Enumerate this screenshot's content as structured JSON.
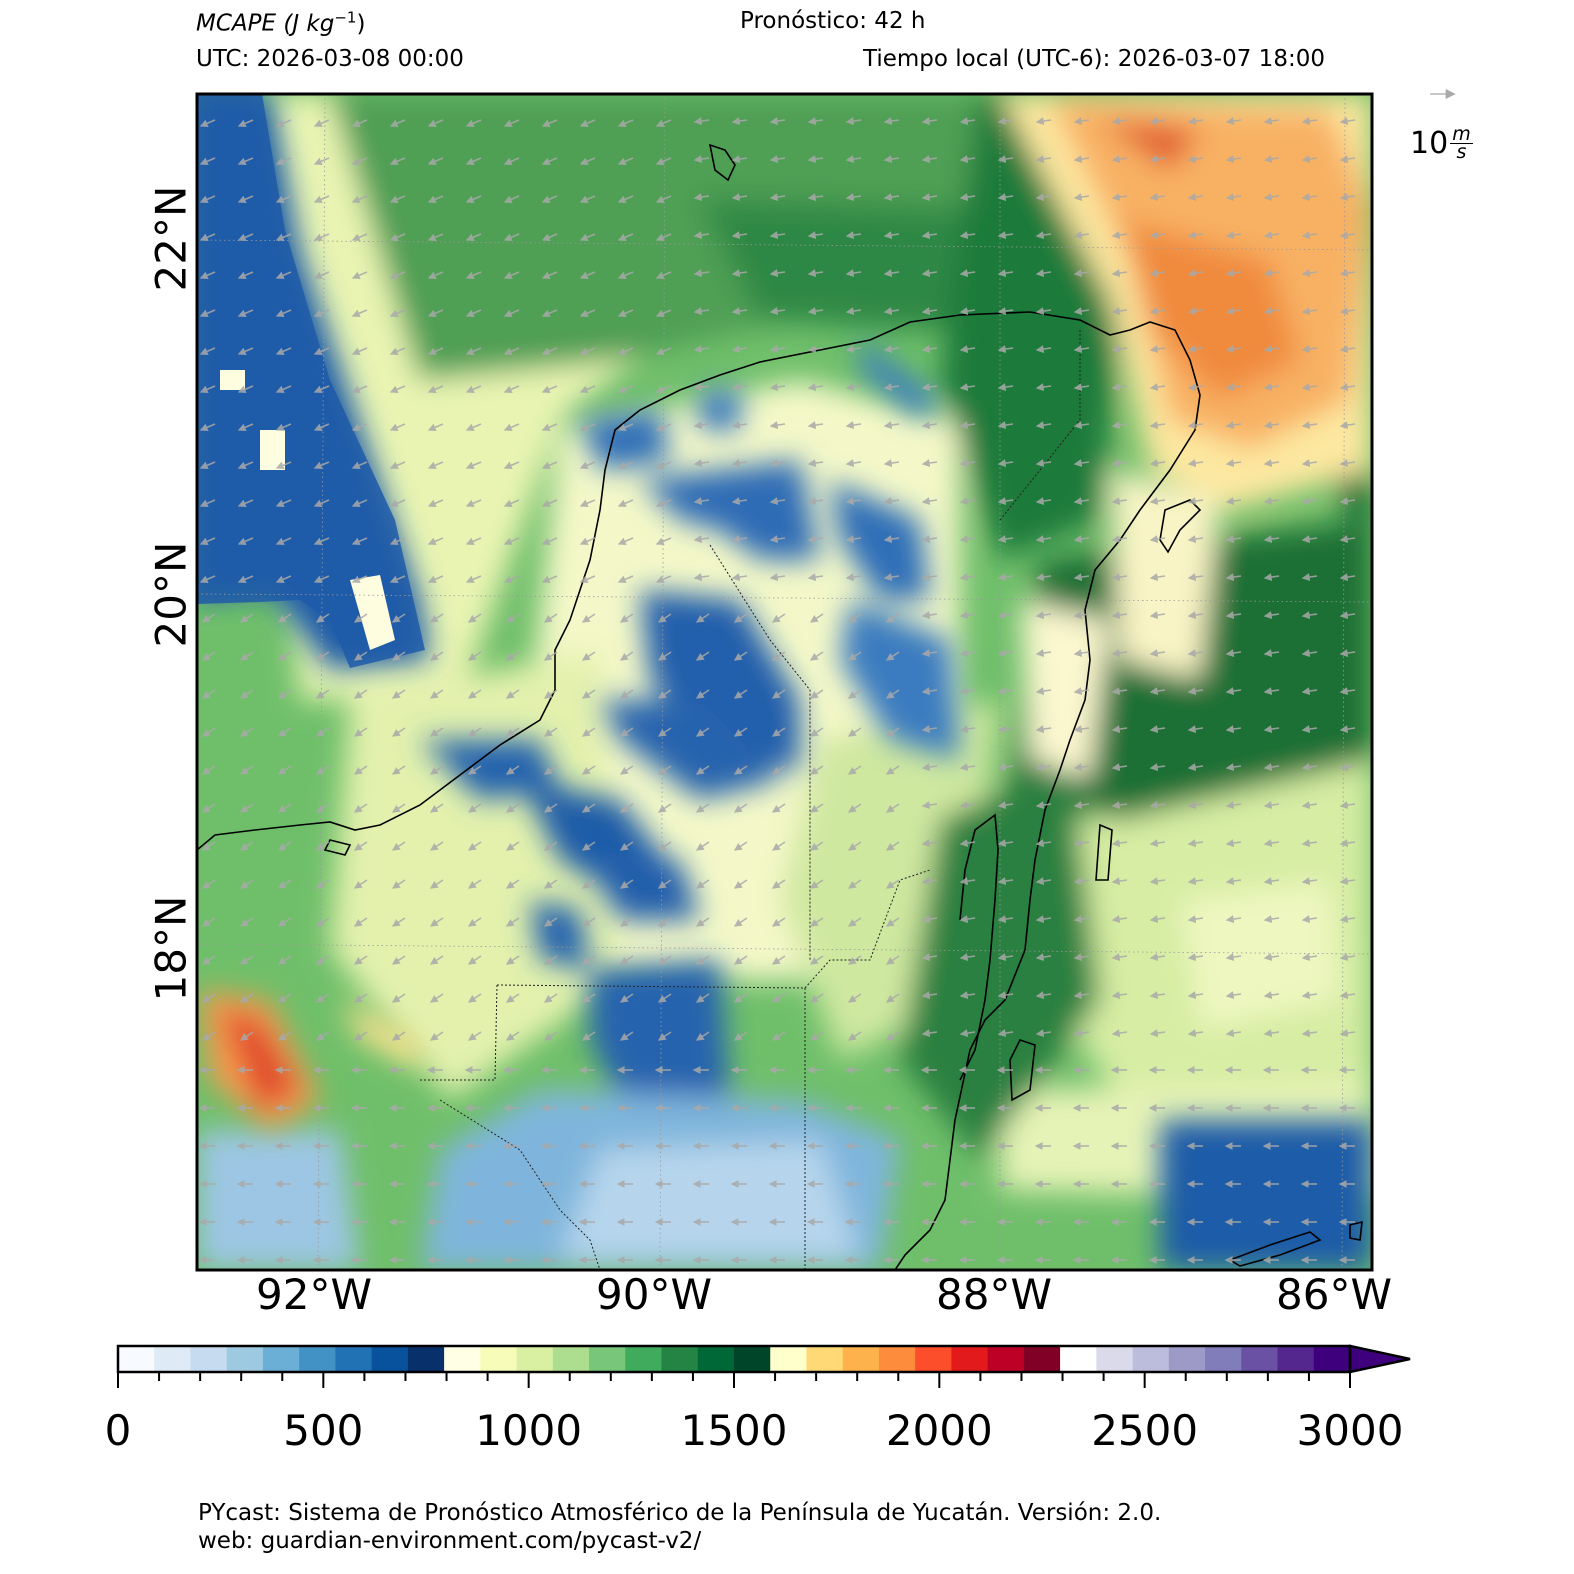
{
  "header": {
    "variable": "MCAPE",
    "units_open": "(J kg",
    "units_exp": "−1",
    "units_close": ")",
    "forecast": "Pronóstico: 42 h",
    "utc": "UTC:  2026-03-08 00:00",
    "local": "Tiempo local (UTC-6): 2026-03-07 18:00"
  },
  "map": {
    "lat_labels": [
      "22°N",
      "20°N",
      "18°N"
    ],
    "lon_labels": [
      "92°W",
      "90°W",
      "88°W",
      "86°W"
    ],
    "wind_key": {
      "value": "10",
      "unit_num": "m",
      "unit_den": "s"
    },
    "colors": {
      "ocean_blue": "#1f5ba8",
      "mid_green": "#5fae63",
      "dark_green": "#1f7a3a",
      "pale": "#f4f8c8",
      "orange": "#f59a4d",
      "red": "#d62f26"
    }
  },
  "colorbar": {
    "ticks": [
      "0",
      "500",
      "1000",
      "1500",
      "2000",
      "2500",
      "3000"
    ],
    "min": 0,
    "max": 3000,
    "step": 100,
    "colors": [
      "#f7fbff",
      "#deebf7",
      "#c6dbef",
      "#9ecae1",
      "#6baed6",
      "#4292c6",
      "#2171b5",
      "#08519c",
      "#08306b",
      "#ffffe5",
      "#f7fcb9",
      "#d9f0a3",
      "#addd8e",
      "#78c679",
      "#41ab5d",
      "#238443",
      "#006837",
      "#004529",
      "#ffffcc",
      "#fed976",
      "#feb24c",
      "#fd8d3c",
      "#fc4e2a",
      "#e31a1c",
      "#bd0026",
      "#800026",
      "#ffffff",
      "#dadaeb",
      "#bcbddc",
      "#9e9ac8",
      "#807dba",
      "#6a51a3",
      "#54278f",
      "#3f007d"
    ]
  },
  "footer": {
    "line1": "PYcast: Sistema de Pronóstico Atmosférico de la Península de Yucatán. Versión: 2.0.",
    "line2": "web: guardian-environment.com/pycast-v2/"
  }
}
